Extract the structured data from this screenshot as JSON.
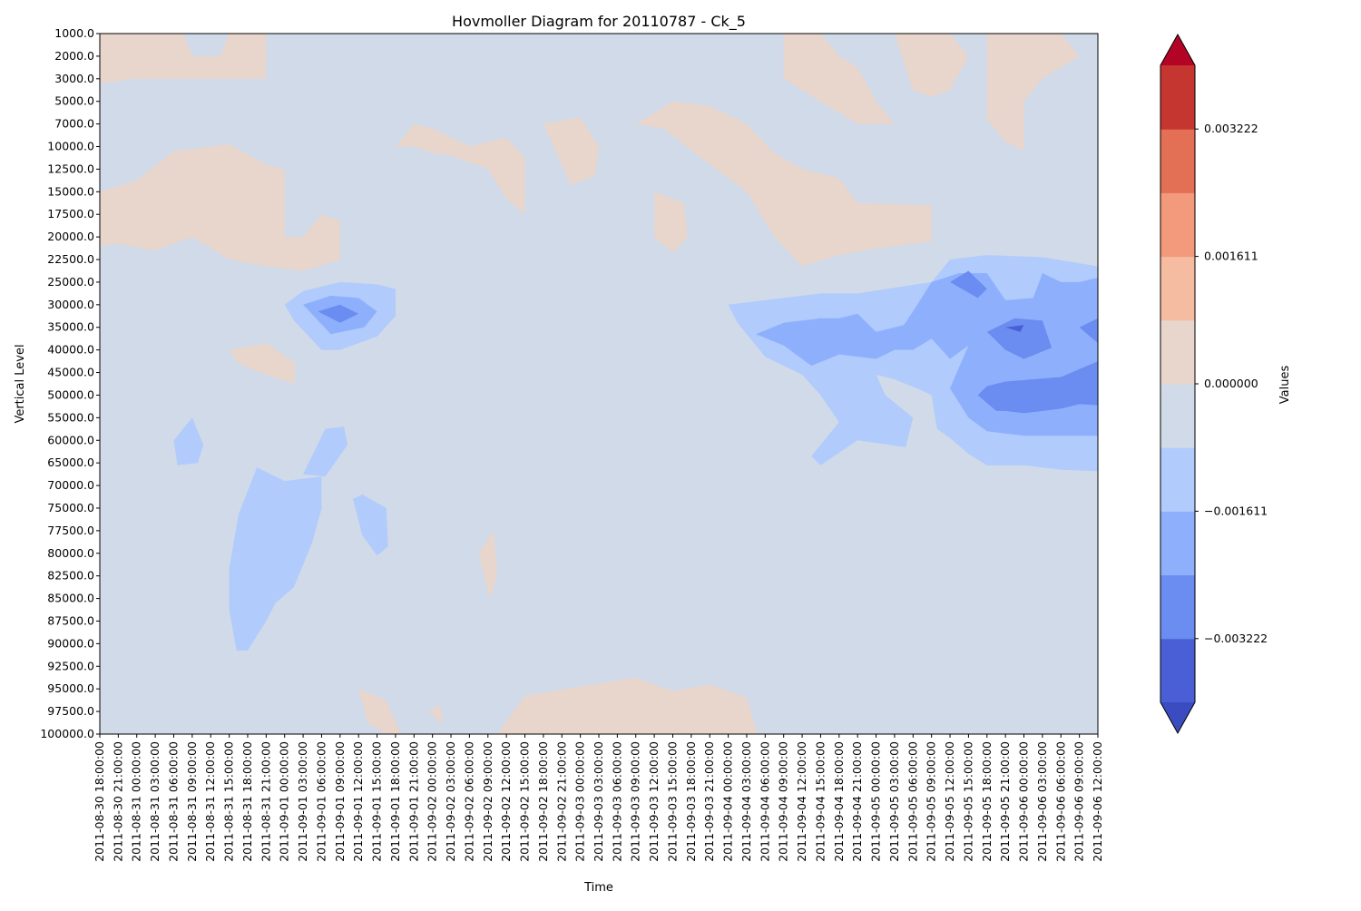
{
  "chart_data": {
    "type": "heatmap",
    "subtype": "filled-contour",
    "title": "Hovmoller Diagram for 20110787 - Ck_5",
    "xlabel": "Time",
    "ylabel": "Vertical Level",
    "colorbar_label": "Values",
    "colormap": "coolwarm",
    "y_inverted": true,
    "x_ticks": [
      "2011-08-30 18:00:00",
      "2011-08-30 21:00:00",
      "2011-08-31 00:00:00",
      "2011-08-31 03:00:00",
      "2011-08-31 06:00:00",
      "2011-08-31 09:00:00",
      "2011-08-31 12:00:00",
      "2011-08-31 15:00:00",
      "2011-08-31 18:00:00",
      "2011-08-31 21:00:00",
      "2011-09-01 00:00:00",
      "2011-09-01 03:00:00",
      "2011-09-01 06:00:00",
      "2011-09-01 09:00:00",
      "2011-09-01 12:00:00",
      "2011-09-01 15:00:00",
      "2011-09-01 18:00:00",
      "2011-09-01 21:00:00",
      "2011-09-02 00:00:00",
      "2011-09-02 03:00:00",
      "2011-09-02 06:00:00",
      "2011-09-02 09:00:00",
      "2011-09-02 12:00:00",
      "2011-09-02 15:00:00",
      "2011-09-02 18:00:00",
      "2011-09-02 21:00:00",
      "2011-09-03 00:00:00",
      "2011-09-03 03:00:00",
      "2011-09-03 06:00:00",
      "2011-09-03 09:00:00",
      "2011-09-03 12:00:00",
      "2011-09-03 15:00:00",
      "2011-09-03 18:00:00",
      "2011-09-03 21:00:00",
      "2011-09-04 00:00:00",
      "2011-09-04 03:00:00",
      "2011-09-04 06:00:00",
      "2011-09-04 09:00:00",
      "2011-09-04 12:00:00",
      "2011-09-04 15:00:00",
      "2011-09-04 18:00:00",
      "2011-09-04 21:00:00",
      "2011-09-05 00:00:00",
      "2011-09-05 03:00:00",
      "2011-09-05 06:00:00",
      "2011-09-05 09:00:00",
      "2011-09-05 12:00:00",
      "2011-09-05 15:00:00",
      "2011-09-05 18:00:00",
      "2011-09-05 21:00:00",
      "2011-09-06 00:00:00",
      "2011-09-06 03:00:00",
      "2011-09-06 06:00:00",
      "2011-09-06 09:00:00",
      "2011-09-06 12:00:00"
    ],
    "y_ticks": [
      "1000.0",
      "2000.0",
      "3000.0",
      "5000.0",
      "7000.0",
      "10000.0",
      "12500.0",
      "15000.0",
      "17500.0",
      "20000.0",
      "22500.0",
      "25000.0",
      "30000.0",
      "35000.0",
      "40000.0",
      "45000.0",
      "50000.0",
      "55000.0",
      "60000.0",
      "65000.0",
      "70000.0",
      "75000.0",
      "77500.0",
      "80000.0",
      "82500.0",
      "85000.0",
      "87500.0",
      "90000.0",
      "92500.0",
      "95000.0",
      "97500.0",
      "100000.0"
    ],
    "colorbar": {
      "ticks": [
        "−0.003222",
        "−0.001611",
        "0.000000",
        "0.001611",
        "0.003222"
      ],
      "tick_values": [
        -0.003222,
        -0.001611,
        0.0,
        0.001611,
        0.003222
      ],
      "level_colors": [
        "#4a5fd5",
        "#6b8cf0",
        "#8eb0fc",
        "#b0cbfc",
        "#d0dae9",
        "#e8d6cc",
        "#f5bca2",
        "#f29a7b",
        "#e36f55",
        "#c63630"
      ],
      "under_color": "#3b4cc0",
      "over_color": "#b40426",
      "extend": "both"
    },
    "background_color": "#d0dae9",
    "features": [
      {
        "level": 1,
        "time_index": [
          0,
          24
        ],
        "level_index": [
          0,
          31
        ],
        "sign": "near-zero"
      },
      {
        "level": 2,
        "time_index": [
          0,
          9
        ],
        "level_index": [
          0,
          10
        ],
        "sign": "positive"
      },
      {
        "level": 2,
        "time_index": [
          24,
          36
        ],
        "level_index": [
          0,
          31
        ],
        "sign": "positive"
      },
      {
        "level": 2,
        "time_index": [
          35,
          55
        ],
        "level_index": [
          0,
          10
        ],
        "sign": "positive"
      },
      {
        "level": -2,
        "time_index": [
          10,
          16
        ],
        "level_index": [
          11,
          14
        ],
        "sign": "negative"
      },
      {
        "level": -2,
        "time_index": [
          34,
          55
        ],
        "level_index": [
          11,
          20
        ],
        "sign": "negative"
      }
    ]
  }
}
